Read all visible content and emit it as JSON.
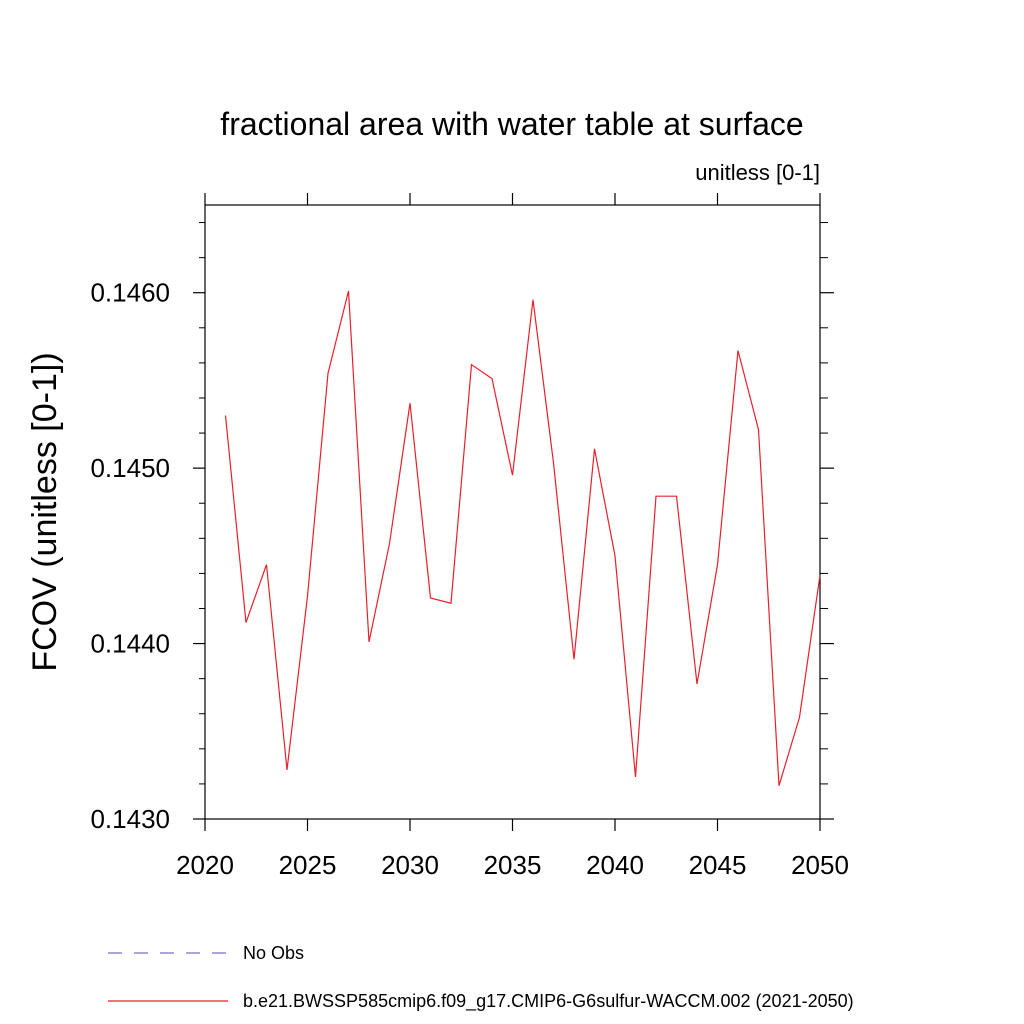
{
  "chart_data": {
    "type": "line",
    "title": "fractional area with water table at surface",
    "subtitle": "unitless [0-1]",
    "xlabel": "",
    "ylabel": "FCOV  (unitless [0-1])",
    "xlim": [
      2020,
      2050
    ],
    "ylim": [
      0.143,
      0.1465
    ],
    "x_ticks": [
      2020,
      2025,
      2030,
      2035,
      2040,
      2045,
      2050
    ],
    "x_tick_labels": [
      "2020",
      "2025",
      "2030",
      "2035",
      "2040",
      "2045",
      "2050"
    ],
    "y_ticks": [
      0.143,
      0.144,
      0.145,
      0.146
    ],
    "y_tick_labels": [
      "0.1430",
      "0.1440",
      "0.1450",
      "0.1460"
    ],
    "y_minor_step": 0.0002,
    "grid": false,
    "legend_placement": "bottom",
    "series": [
      {
        "name": "b.e21.BWSSP585cmip6.f09_g17.CMIP6-G6sulfur-WACCM.002 (2021-2050)",
        "color": "#e8202a",
        "style": "solid",
        "x": [
          2021,
          2022,
          2023,
          2024,
          2025,
          2026,
          2027,
          2028,
          2029,
          2030,
          2031,
          2032,
          2033,
          2034,
          2035,
          2036,
          2037,
          2038,
          2039,
          2040,
          2041,
          2042,
          2043,
          2044,
          2045,
          2046,
          2047,
          2048,
          2049,
          2050
        ],
        "y": [
          0.1453,
          0.14412,
          0.14445,
          0.14328,
          0.14427,
          0.14554,
          0.14601,
          0.14401,
          0.14457,
          0.14537,
          0.14426,
          0.14423,
          0.14559,
          0.14551,
          0.14496,
          0.14596,
          0.14503,
          0.14391,
          0.14511,
          0.1445,
          0.14324,
          0.14484,
          0.14484,
          0.14377,
          0.14445,
          0.14567,
          0.14522,
          0.14319,
          0.14358,
          0.14439
        ]
      }
    ],
    "legend": [
      {
        "label": "No Obs",
        "color": "#7b6fc4",
        "style": "dashed"
      },
      {
        "label": "b.e21.BWSSP585cmip6.f09_g17.CMIP6-G6sulfur-WACCM.002 (2021-2050)",
        "color": "#e8202a",
        "style": "solid"
      }
    ]
  }
}
